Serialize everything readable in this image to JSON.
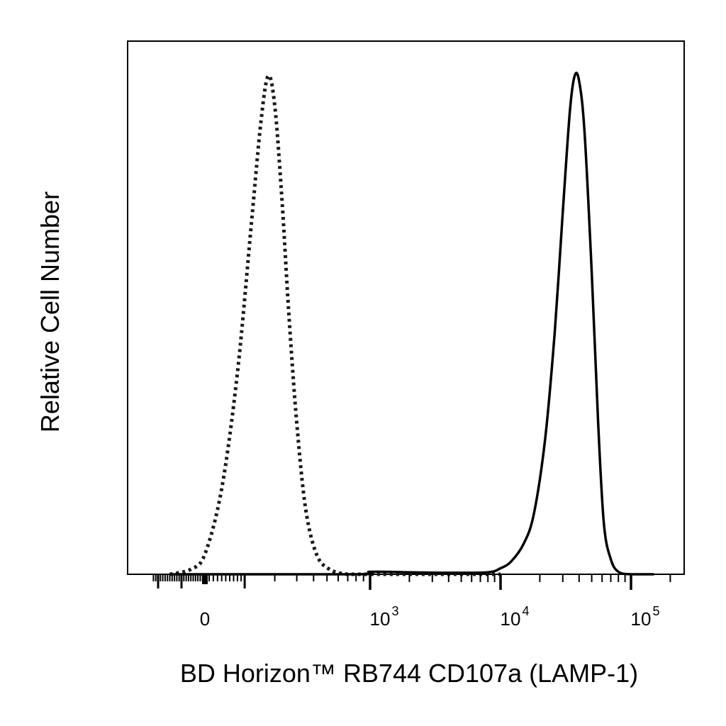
{
  "chart_data": {
    "type": "area",
    "xlabel": "BD Horizon™ RB744 CD107a (LAMP-1)",
    "ylabel": "Relative Cell Number",
    "x_scale": "biexponential",
    "x_tick_labels": [
      {
        "base": "0",
        "exp": ""
      },
      {
        "base": "10",
        "exp": "3"
      },
      {
        "base": "10",
        "exp": "4"
      },
      {
        "base": "10",
        "exp": "5"
      }
    ],
    "x_tick_values": [
      0,
      1000,
      10000,
      100000
    ],
    "ylim": [
      0,
      1
    ],
    "grid": false,
    "legend": "none",
    "series": [
      {
        "style": "dotted",
        "color": "#1a1a1a",
        "x": [
          -150,
          -60,
          0,
          40,
          80,
          120,
          150,
          175,
          200,
          230,
          260,
          300,
          350,
          420,
          520,
          700,
          1000,
          2000,
          4000,
          10000
        ],
        "values": [
          0,
          0.01,
          0.04,
          0.17,
          0.4,
          0.7,
          0.9,
          0.99,
          0.93,
          0.74,
          0.52,
          0.3,
          0.13,
          0.04,
          0.01,
          0,
          0,
          0,
          0,
          0
        ]
      },
      {
        "style": "solid",
        "color": "#000000",
        "x": [
          -150,
          800,
          1000,
          2000,
          4000,
          8000,
          10000,
          12000,
          15000,
          18000,
          22000,
          26000,
          30000,
          34000,
          37000,
          40000,
          44000,
          50000,
          56000,
          62000,
          70000,
          80000,
          100000,
          150000
        ],
        "values": [
          0,
          0,
          0.005,
          0.004,
          0.003,
          0.004,
          0.012,
          0.025,
          0.06,
          0.12,
          0.27,
          0.48,
          0.72,
          0.92,
          0.99,
          0.98,
          0.88,
          0.6,
          0.3,
          0.1,
          0.03,
          0.005,
          0,
          0
        ]
      }
    ]
  }
}
